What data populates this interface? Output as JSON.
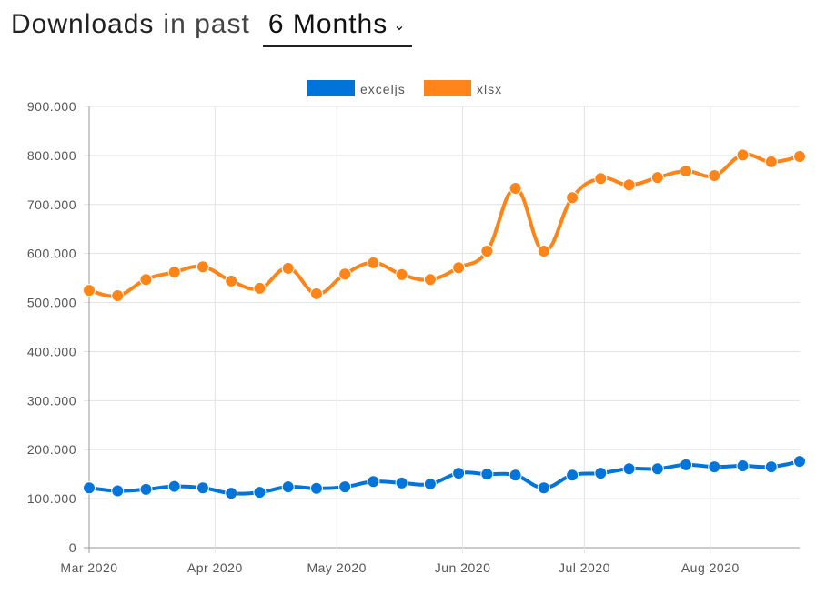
{
  "header": {
    "title_strong": "Downloads",
    "title_light": "in past",
    "period": "6 Months",
    "dropdown_icon": "chevron-down-icon"
  },
  "chart_data": {
    "type": "line",
    "legend_position": "top",
    "grid": true,
    "ylim": [
      0,
      900000
    ],
    "y_ticks": [
      "0",
      "100.000",
      "200.000",
      "300.000",
      "400.000",
      "500.000",
      "600.000",
      "700.000",
      "800.000",
      "900.000"
    ],
    "x_ticks": [
      {
        "date": "2020-03-01",
        "label": "Mar 2020"
      },
      {
        "date": "2020-04-01",
        "label": "Apr 2020"
      },
      {
        "date": "2020-05-01",
        "label": "May 2020"
      },
      {
        "date": "2020-06-01",
        "label": "Jun 2020"
      },
      {
        "date": "2020-07-01",
        "label": "Jul 2020"
      },
      {
        "date": "2020-08-01",
        "label": "Aug 2020"
      }
    ],
    "x_start": "2020-03-01",
    "x_end": "2020-08-23",
    "x": [
      "2020-03-01",
      "2020-03-08",
      "2020-03-15",
      "2020-03-22",
      "2020-03-29",
      "2020-04-05",
      "2020-04-12",
      "2020-04-19",
      "2020-04-26",
      "2020-05-03",
      "2020-05-10",
      "2020-05-17",
      "2020-05-24",
      "2020-05-31",
      "2020-06-07",
      "2020-06-14",
      "2020-06-21",
      "2020-06-28",
      "2020-07-05",
      "2020-07-12",
      "2020-07-19",
      "2020-07-26",
      "2020-08-02",
      "2020-08-09",
      "2020-08-16",
      "2020-08-23"
    ],
    "series": [
      {
        "name": "exceljs",
        "color": "#0074d9",
        "values": [
          122000,
          116000,
          119000,
          125000,
          122000,
          111000,
          113000,
          124000,
          121000,
          124000,
          135000,
          132000,
          130000,
          152000,
          150000,
          148000,
          122000,
          148000,
          152000,
          161000,
          161000,
          169000,
          165000,
          167000,
          165000,
          176000
        ]
      },
      {
        "name": "xlsx",
        "color": "#ff851b",
        "values": [
          525000,
          514000,
          547000,
          562000,
          573000,
          544000,
          529000,
          570000,
          518000,
          558000,
          581000,
          557000,
          547000,
          571000,
          605000,
          733000,
          605000,
          714000,
          753000,
          740000,
          755000,
          768000,
          759000,
          801000,
          787000,
          798000
        ]
      }
    ]
  }
}
